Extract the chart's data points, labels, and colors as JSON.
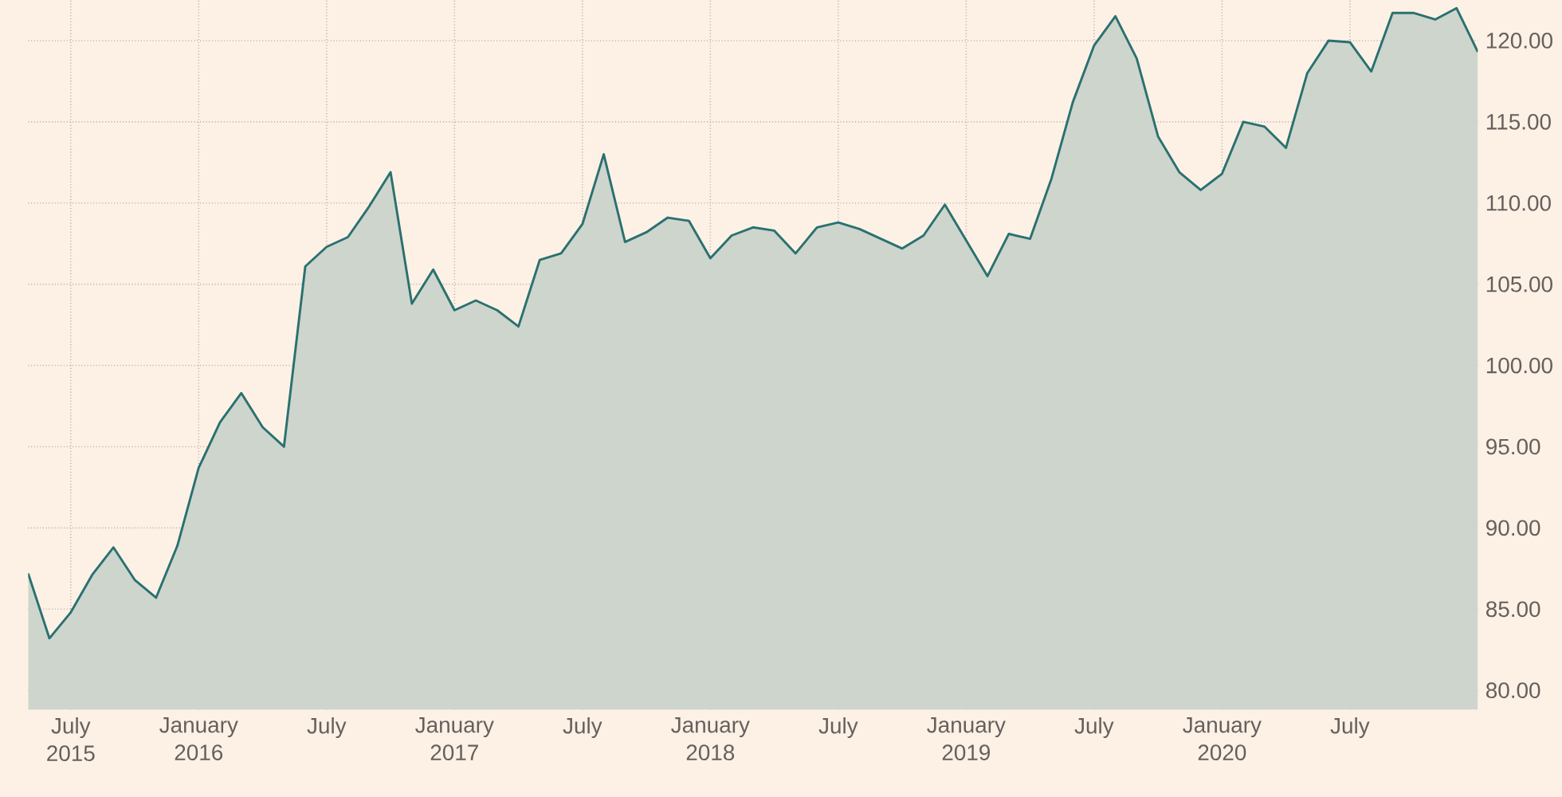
{
  "chart_data": {
    "type": "area",
    "x": [
      "2015-05",
      "2015-06",
      "2015-07",
      "2015-08",
      "2015-09",
      "2015-10",
      "2015-11",
      "2015-12",
      "2016-01",
      "2016-02",
      "2016-03",
      "2016-04",
      "2016-05",
      "2016-06",
      "2016-07",
      "2016-08",
      "2016-09",
      "2016-10",
      "2016-11",
      "2016-12",
      "2017-01",
      "2017-02",
      "2017-03",
      "2017-04",
      "2017-05",
      "2017-06",
      "2017-07",
      "2017-08",
      "2017-09",
      "2017-10",
      "2017-11",
      "2017-12",
      "2018-01",
      "2018-02",
      "2018-03",
      "2018-04",
      "2018-05",
      "2018-06",
      "2018-07",
      "2018-08",
      "2018-09",
      "2018-10",
      "2018-11",
      "2018-12",
      "2019-01",
      "2019-02",
      "2019-03",
      "2019-04",
      "2019-05",
      "2019-06",
      "2019-07",
      "2019-08",
      "2019-09",
      "2019-10",
      "2019-11",
      "2019-12",
      "2020-01",
      "2020-02",
      "2020-03",
      "2020-04",
      "2020-05",
      "2020-06",
      "2020-07",
      "2020-08",
      "2020-09",
      "2020-10",
      "2020-11",
      "2020-12",
      "2021-01"
    ],
    "series": [
      {
        "color": "#2a7170",
        "values": [
          87.2,
          83.2,
          84.8,
          87.1,
          88.8,
          86.8,
          85.7,
          88.9,
          93.7,
          96.5,
          98.3,
          96.2,
          95.0,
          106.1,
          107.3,
          107.9,
          109.8,
          111.9,
          103.8,
          105.9,
          103.4,
          104.0,
          103.4,
          102.4,
          106.5,
          106.9,
          108.7,
          113.0,
          107.6,
          108.2,
          109.1,
          108.9,
          106.6,
          108.0,
          108.5,
          108.3,
          106.9,
          108.5,
          108.8,
          108.4,
          107.8,
          107.2,
          108.0,
          109.9,
          107.7,
          105.5,
          108.1,
          107.8,
          111.5,
          116.2,
          119.7,
          121.5,
          118.9,
          114.1,
          111.9,
          110.8,
          111.8,
          115.0,
          114.7,
          113.4,
          118.0,
          120.0,
          119.9,
          118.1,
          121.7,
          121.7,
          121.3,
          122.0,
          119.3
        ]
      }
    ],
    "xlim": [
      "2015-05",
      "2021-01"
    ],
    "xticks": [
      {
        "value": "2015-07",
        "label": "July 2015"
      },
      {
        "value": "2016-01",
        "label": "January 2016"
      },
      {
        "value": "2016-07",
        "label": "July"
      },
      {
        "value": "2017-01",
        "label": "January 2017"
      },
      {
        "value": "2017-07",
        "label": "July"
      },
      {
        "value": "2018-01",
        "label": "January 2018"
      },
      {
        "value": "2018-07",
        "label": "July"
      },
      {
        "value": "2019-01",
        "label": "January 2019"
      },
      {
        "value": "2019-07",
        "label": "July"
      },
      {
        "value": "2020-01",
        "label": "January 2020"
      },
      {
        "value": "2020-07",
        "label": "July"
      }
    ],
    "ylim": [
      78.8,
      122.5
    ],
    "yticks": [
      {
        "value": 80,
        "label": "80.00"
      },
      {
        "value": 85,
        "label": "85.00"
      },
      {
        "value": 90,
        "label": "90.00"
      },
      {
        "value": 95,
        "label": "95.00"
      },
      {
        "value": 100,
        "label": "100.00"
      },
      {
        "value": 105,
        "label": "105.00"
      },
      {
        "value": 110,
        "label": "110.00"
      },
      {
        "value": 115,
        "label": "115.00"
      },
      {
        "value": 120,
        "label": "120.00"
      }
    ],
    "grid": true
  }
}
